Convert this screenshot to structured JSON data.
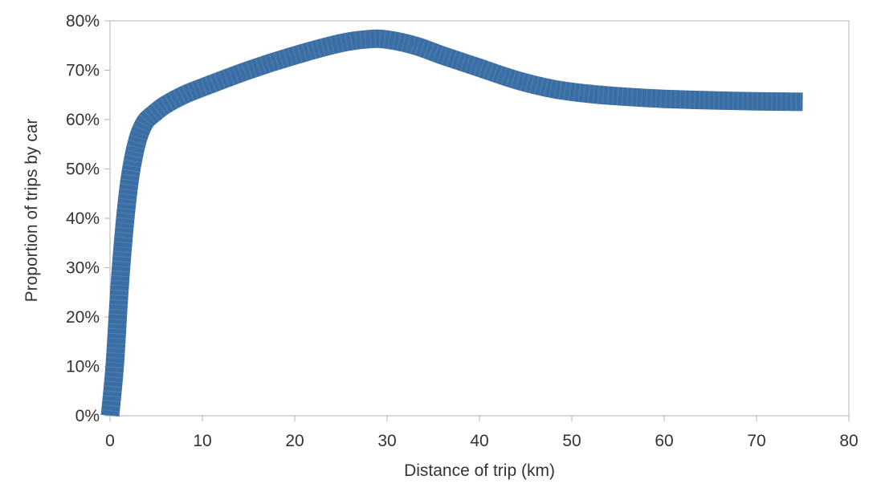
{
  "chart_data": {
    "type": "line",
    "title": "",
    "xlabel": "Distance of trip (km)",
    "ylabel": "Proportion of trips by car",
    "xlim": [
      0,
      80
    ],
    "ylim": [
      0,
      80
    ],
    "x_ticks": [
      "0",
      "10",
      "20",
      "30",
      "40",
      "50",
      "60",
      "70",
      "80"
    ],
    "y_ticks": [
      "0%",
      "10%",
      "20%",
      "30%",
      "40%",
      "50%",
      "60%",
      "70%",
      "80%"
    ],
    "grid": false,
    "legend": "none",
    "series": [
      {
        "color": "#3a6ea5",
        "points": [
          [
            0,
            0
          ],
          [
            0.5,
            10
          ],
          [
            1,
            25
          ],
          [
            1.5,
            37
          ],
          [
            2,
            46
          ],
          [
            2.5,
            52
          ],
          [
            3,
            56
          ],
          [
            3.5,
            58.5
          ],
          [
            4,
            60
          ],
          [
            5,
            61.6
          ],
          [
            6,
            63
          ],
          [
            8,
            65
          ],
          [
            10,
            66.5
          ],
          [
            15,
            70
          ],
          [
            20,
            73
          ],
          [
            25,
            75.5
          ],
          [
            28,
            76.3
          ],
          [
            30,
            76.2
          ],
          [
            33,
            75
          ],
          [
            36,
            73
          ],
          [
            40,
            70.5
          ],
          [
            44,
            68
          ],
          [
            48,
            66.2
          ],
          [
            52,
            65.2
          ],
          [
            56,
            64.6
          ],
          [
            60,
            64.2
          ],
          [
            65,
            63.9
          ],
          [
            70,
            63.7
          ],
          [
            75,
            63.6
          ]
        ]
      }
    ]
  }
}
